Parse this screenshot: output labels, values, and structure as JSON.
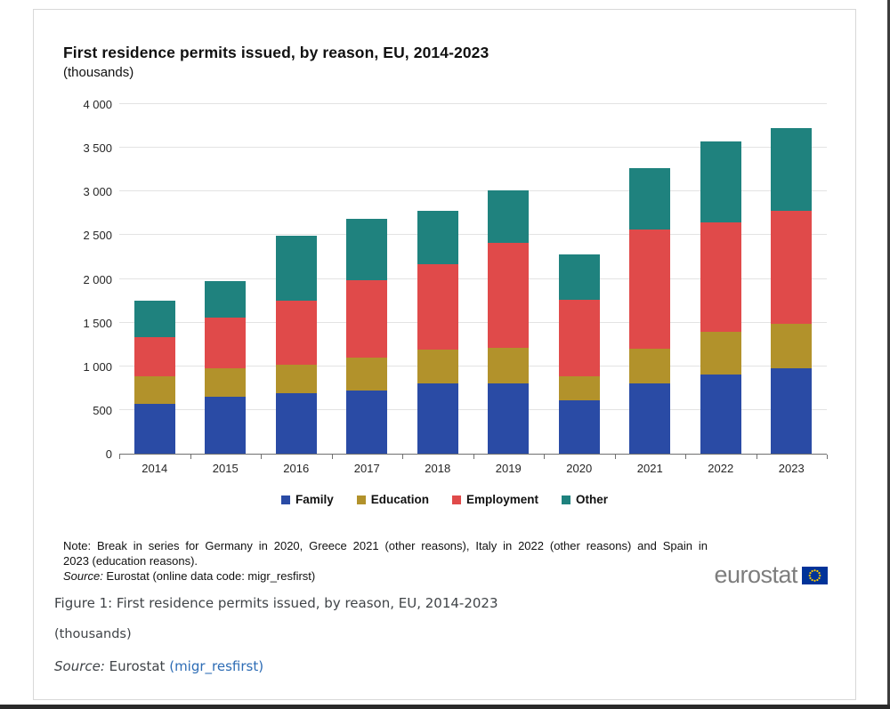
{
  "header": {
    "title": "First residence permits issued, by reason, EU, 2014-2023",
    "subtitle": "(thousands)"
  },
  "chart_data": {
    "type": "bar",
    "stacked": true,
    "title": "First residence permits issued, by reason, EU, 2014-2023",
    "subtitle": "(thousands)",
    "categories": [
      "2014",
      "2015",
      "2016",
      "2017",
      "2018",
      "2019",
      "2020",
      "2021",
      "2022",
      "2023"
    ],
    "series": [
      {
        "name": "Family",
        "color": "#2A4BA5",
        "values": [
          570,
          655,
          690,
          725,
          800,
          800,
          610,
          805,
          910,
          975
        ]
      },
      {
        "name": "Education",
        "color": "#B2922B",
        "values": [
          320,
          320,
          330,
          370,
          390,
          410,
          275,
          400,
          480,
          515
        ]
      },
      {
        "name": "Employment",
        "color": "#E04A4A",
        "values": [
          440,
          585,
          735,
          895,
          980,
          1200,
          875,
          1365,
          1260,
          1290
        ]
      },
      {
        "name": "Other",
        "color": "#1F827E",
        "values": [
          420,
          420,
          735,
          700,
          610,
          600,
          520,
          700,
          920,
          950
        ]
      }
    ],
    "totals": [
      1750,
      1980,
      2490,
      2690,
      2780,
      3010,
      2280,
      3270,
      3570,
      3730
    ],
    "ylim": [
      0,
      4000
    ],
    "yticks": [
      "0",
      "500",
      "1 000",
      "1 500",
      "2 000",
      "2 500",
      "3 000",
      "3 500",
      "4 000"
    ],
    "xlabel": "",
    "ylabel": "",
    "grid": true,
    "legend_position": "bottom"
  },
  "note": {
    "line1": "Note: Break in series for Germany in 2020, Greece 2021 (other reasons), Italy in 2022 (other reasons) and Spain in",
    "line2": "2023 (education reasons).",
    "source_label": "Source:",
    "source_text": " Eurostat (online data code: migr_resfirst)"
  },
  "logo": {
    "text": "eurostat",
    "flag_bg": "#003399",
    "star_color": "#FFCC00"
  },
  "caption": {
    "title": "Figure 1: First residence permits issued, by reason, EU, 2014-2023",
    "subtitle": "(thousands)",
    "source_label": "Source:",
    "source_text": " Eurostat ",
    "source_link": "(migr_resfirst)"
  }
}
